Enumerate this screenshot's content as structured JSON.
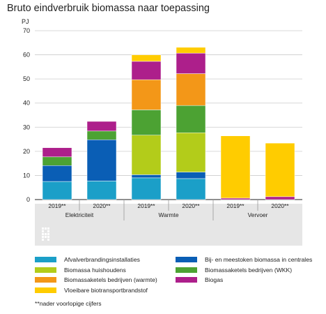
{
  "title": "Bruto eindverbruik biomassa naar toepassing",
  "unit_label": "PJ",
  "note": "**nader voorlopige cijfers",
  "colors": {
    "afval": "#1b9fc8",
    "huishoudens": "#b3cc1a",
    "ketels_warmte": "#f39718",
    "biotransport": "#ffcc00",
    "centrales": "#0a5eb5",
    "ketels_wkk": "#4ca233",
    "biogas": "#ad1f8b"
  },
  "legend": [
    {
      "key": "afval",
      "label": "Afvalverbrandingsinstallaties"
    },
    {
      "key": "centrales",
      "label": "Bij- en meestoken biomassa in centrales"
    },
    {
      "key": "huishoudens",
      "label": "Biomassa huishoudens"
    },
    {
      "key": "ketels_wkk",
      "label": "Biomassaketels bedrijven (WKK)"
    },
    {
      "key": "ketels_warmte",
      "label": "Biomassaketels bedrijven (warmte)"
    },
    {
      "key": "biogas",
      "label": "Biogas"
    },
    {
      "key": "biotransport",
      "label": "Vloeibare biotransportbrandstof"
    }
  ],
  "chart_data": {
    "type": "bar",
    "stacked": true,
    "ylabel": "PJ",
    "ylim": [
      0,
      70
    ],
    "yticks": [
      0,
      10,
      20,
      30,
      40,
      50,
      60,
      70
    ],
    "grid": true,
    "groups": [
      "Elektriciteit",
      "Warmte",
      "Vervoer"
    ],
    "categories": [
      {
        "group": "Elektriciteit",
        "label": "2019**"
      },
      {
        "group": "Elektriciteit",
        "label": "2020**"
      },
      {
        "group": "Warmte",
        "label": "2019**"
      },
      {
        "group": "Warmte",
        "label": "2020**"
      },
      {
        "group": "Vervoer",
        "label": "2019**"
      },
      {
        "group": "Vervoer",
        "label": "2020**"
      }
    ],
    "series": [
      {
        "key": "afval",
        "name": "Afvalverbrandingsinstallaties",
        "values": [
          7.5,
          7.7,
          9.0,
          8.7,
          0,
          0
        ]
      },
      {
        "key": "centrales",
        "name": "Bij- en meestoken biomassa in centrales",
        "values": [
          6.6,
          17.1,
          1.3,
          2.7,
          0,
          0
        ]
      },
      {
        "key": "huishoudens",
        "name": "Biomassa huishoudens",
        "values": [
          0,
          0,
          16.4,
          16.3,
          0,
          0
        ]
      },
      {
        "key": "ketels_wkk",
        "name": "Biomassaketels bedrijven (WKK)",
        "values": [
          3.6,
          3.6,
          10.5,
          11.3,
          0,
          0
        ]
      },
      {
        "key": "ketels_warmte",
        "name": "Biomassaketels bedrijven (warmte)",
        "values": [
          0,
          0,
          12.5,
          13.2,
          0,
          0
        ]
      },
      {
        "key": "biogas",
        "name": "Biogas",
        "values": [
          3.8,
          4.0,
          7.6,
          8.5,
          0.6,
          1.2
        ]
      },
      {
        "key": "biotransport",
        "name": "Vloeibare biotransportbrandstof",
        "values": [
          0,
          0,
          2.7,
          2.4,
          25.8,
          22.2
        ]
      }
    ]
  }
}
